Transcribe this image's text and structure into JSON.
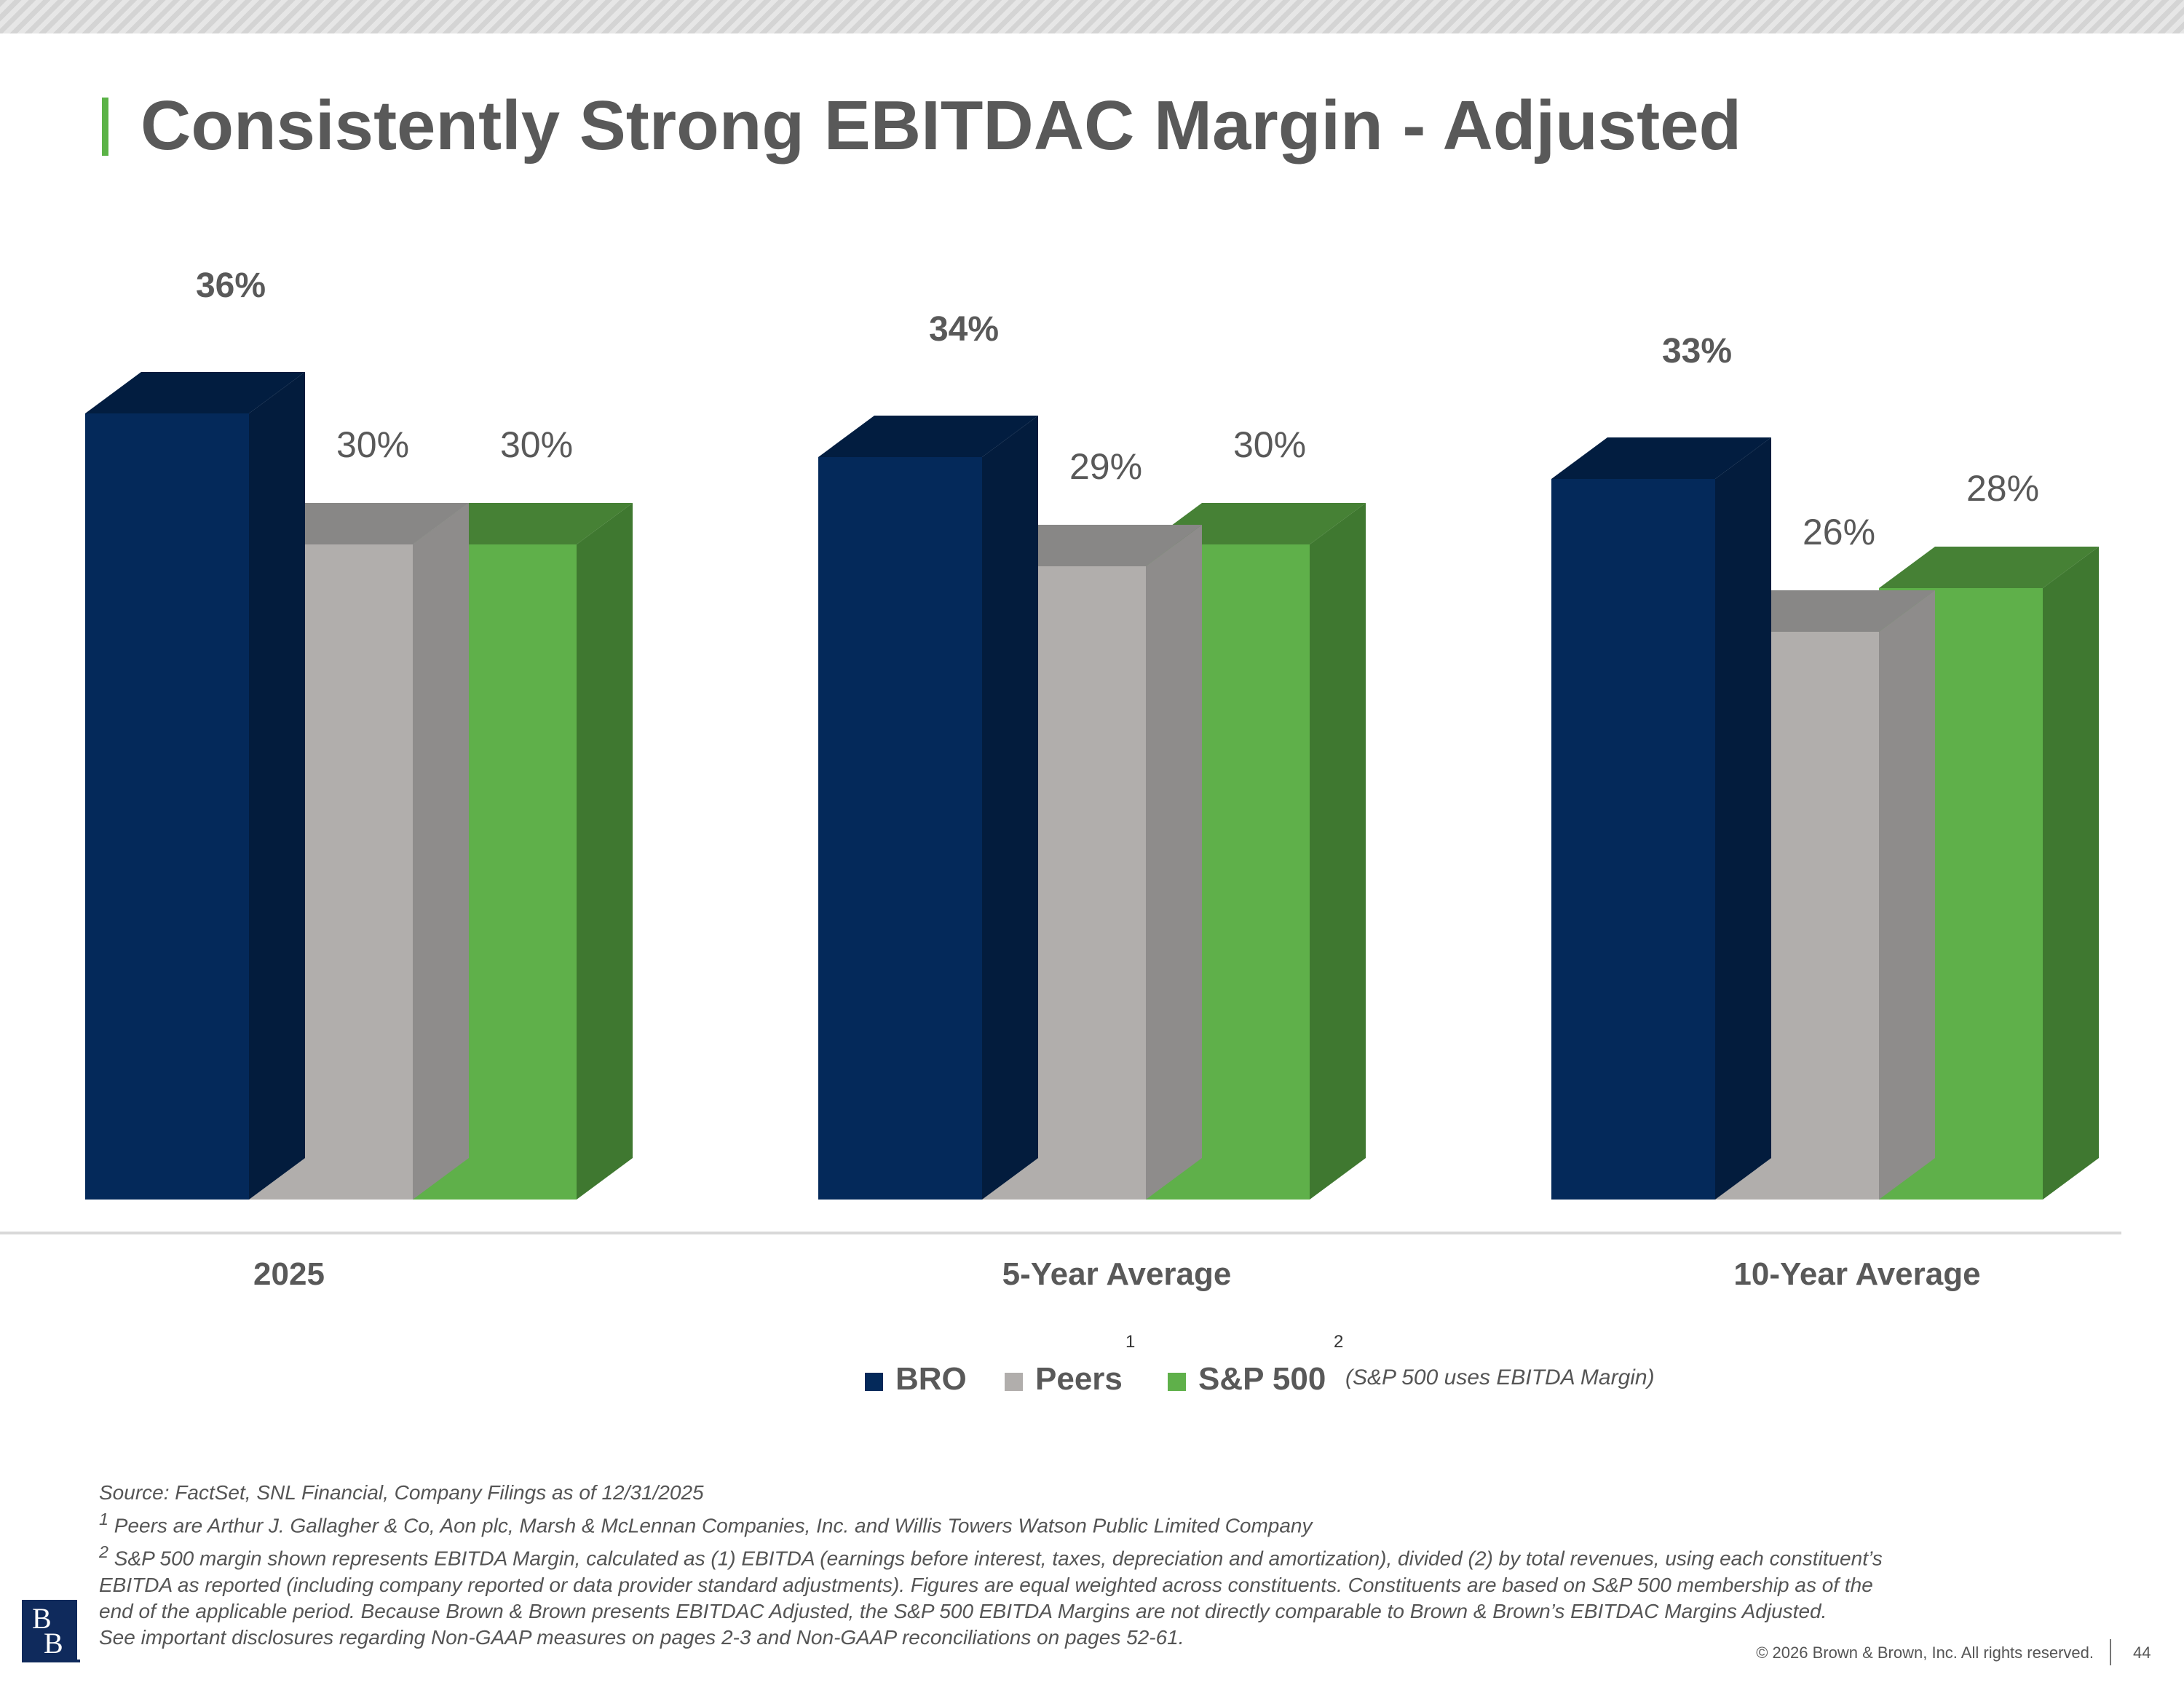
{
  "header": {
    "title": "Consistently Strong EBITDAC Margin - Adjusted"
  },
  "colors": {
    "bro": "#04295a",
    "peers": "#b1aeac",
    "sp500": "#5fb04a",
    "accent": "#5bb347",
    "text": "#595959"
  },
  "chart_data": {
    "type": "bar",
    "title": "",
    "xlabel": "",
    "ylabel": "",
    "ylim": [
      0,
      36
    ],
    "categories": [
      "2025",
      "5-Year Average",
      "10-Year Average"
    ],
    "series": [
      {
        "name": "BRO",
        "values": [
          36,
          34,
          33
        ],
        "labels": [
          "36%",
          "34%",
          "33%"
        ]
      },
      {
        "name": "Peers",
        "values": [
          30,
          29,
          26
        ],
        "labels": [
          "30%",
          "29%",
          "26%"
        ]
      },
      {
        "name": "S&P 500",
        "values": [
          30,
          30,
          28
        ],
        "labels": [
          "30%",
          "30%",
          "28%"
        ]
      }
    ],
    "grid": false,
    "legend": "bottom-center"
  },
  "legend": {
    "items": [
      {
        "label": "BRO",
        "sup": ""
      },
      {
        "label": "Peers",
        "sup": "1"
      },
      {
        "label": "S&P 500",
        "sup": "2"
      }
    ],
    "note": "(S&P 500 uses EBITDA Margin)"
  },
  "footnotes": {
    "source": "Source: FactSet, SNL Financial, Company Filings as of 12/31/2025",
    "note1_marker": "1",
    "note1": "Peers are Arthur J. Gallagher & Co, Aon plc, Marsh & McLennan Companies, Inc. and Willis Towers Watson Public Limited Company",
    "note2_marker": "2",
    "note2_line1": "S&P 500 margin shown represents EBITDA Margin, calculated as (1) EBITDA (earnings before interest, taxes, depreciation and amortization), divided (2) by total revenues, using each constituent’s",
    "note2_line2": "EBITDA as reported (including company reported or data provider standard adjustments). Figures are equal weighted across constituents. Constituents are based on S&P 500 membership as of the",
    "note2_line3": "end of the applicable period. Because Brown & Brown presents EBITDAC Adjusted, the S&P 500 EBITDA Margins are not directly comparable to Brown & Brown’s EBITDAC Margins Adjusted.",
    "disclosure": "See important disclosures regarding Non-GAAP measures on pages 2-3 and Non-GAAP reconciliations on pages 52-61."
  },
  "footer": {
    "logo_text_1": "B",
    "logo_text_2": "B",
    "copyright": "© 2026 Brown & Brown, Inc. All rights reserved.",
    "page_number": "44"
  }
}
